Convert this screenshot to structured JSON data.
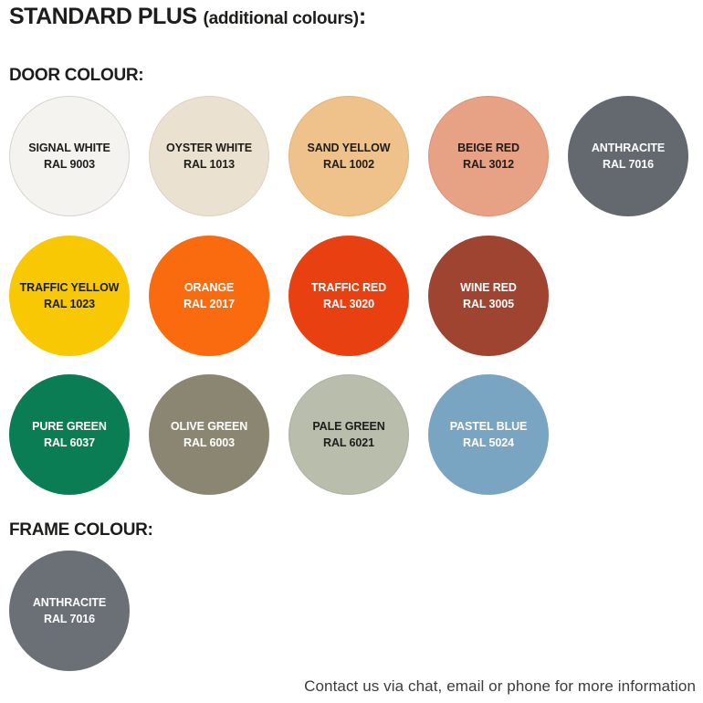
{
  "title": {
    "main": "STANDARD PLUS",
    "sub": "(additional colours)",
    "colon": ":"
  },
  "door": {
    "heading": "DOOR COLOUR:",
    "rows": [
      [
        {
          "label": "SIGNAL WHITE",
          "ral": "RAL 9003",
          "hex": "#f4f3ef",
          "text_color": "#1d1d1b",
          "border": "#d5d5cf"
        },
        {
          "label": "OYSTER WHITE",
          "ral": "RAL 1013",
          "hex": "#ebe1d1",
          "text_color": "#1d1d1b",
          "border": "#ddd2c0"
        },
        {
          "label": "SAND YELLOW",
          "ral": "RAL 1002",
          "hex": "#eec28a",
          "text_color": "#1d1d1b",
          "border": "#e4b476"
        },
        {
          "label": "BEIGE RED",
          "ral": "RAL 3012",
          "hex": "#e7a184",
          "text_color": "#1d1d1b",
          "border": "#dd9273"
        },
        {
          "label": "ANTHRACITE",
          "ral": "RAL 7016",
          "hex": "#63696f",
          "text_color": "#ffffff",
          "border": "#63696f"
        }
      ],
      [
        {
          "label": "TRAFFIC YELLOW",
          "ral": "RAL 1023",
          "hex": "#f9c805",
          "text_color": "#1d1d1b",
          "border": "#f9c805"
        },
        {
          "label": "ORANGE",
          "ral": "RAL 2017",
          "hex": "#f96b0e",
          "text_color": "#ffffff",
          "border": "#f96b0e"
        },
        {
          "label": "TRAFFIC RED",
          "ral": "RAL 3020",
          "hex": "#e84010",
          "text_color": "#ffffff",
          "border": "#e84010"
        },
        {
          "label": "WINE RED",
          "ral": "RAL 3005",
          "hex": "#9e4431",
          "text_color": "#ffffff",
          "border": "#9e4431"
        }
      ],
      [
        {
          "label": "PURE GREEN",
          "ral": "RAL 6037",
          "hex": "#0b7d54",
          "text_color": "#ffffff",
          "border": "#0b7d54"
        },
        {
          "label": "OLIVE GREEN",
          "ral": "RAL 6003",
          "hex": "#8b8672",
          "text_color": "#ffffff",
          "border": "#8b8672"
        },
        {
          "label": "PALE GREEN",
          "ral": "RAL 6021",
          "hex": "#b8bdac",
          "text_color": "#1d1d1b",
          "border": "#adb29f"
        },
        {
          "label": "PASTEL BLUE",
          "ral": "RAL 5024",
          "hex": "#79a5c3",
          "text_color": "#ffffff",
          "border": "#79a5c3"
        }
      ]
    ]
  },
  "frame": {
    "heading": "FRAME COLOUR:",
    "swatch": {
      "label": "ANTHRACITE",
      "ral": "RAL 7016",
      "hex": "#6b7076",
      "text_color": "#ffffff",
      "border": "#6b7076"
    }
  },
  "footer": {
    "text": "Contact us via chat, email or phone for more information"
  }
}
